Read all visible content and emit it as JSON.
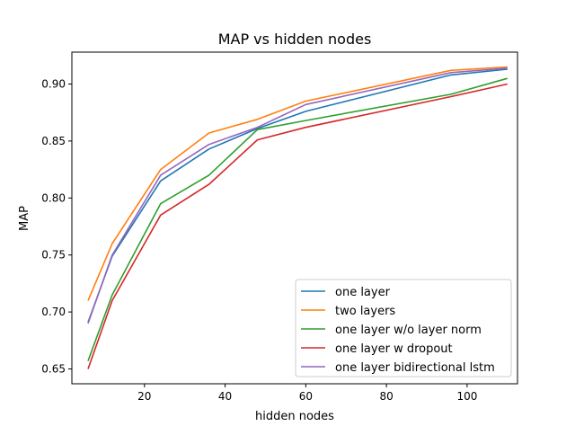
{
  "chart_data": {
    "type": "line",
    "title": "MAP vs hidden nodes",
    "xlabel": "hidden nodes",
    "ylabel": "MAP",
    "xlim": [
      2,
      112.5
    ],
    "ylim": [
      0.637,
      0.928
    ],
    "xticks": [
      20,
      40,
      60,
      80,
      100
    ],
    "yticks": [
      0.65,
      0.7,
      0.75,
      0.8,
      0.85,
      0.9
    ],
    "xtick_labels": [
      "20",
      "40",
      "60",
      "80",
      "100"
    ],
    "ytick_labels": [
      "0.65",
      "0.70",
      "0.75",
      "0.80",
      "0.85",
      "0.90"
    ],
    "x": [
      6,
      12,
      24,
      36,
      48,
      60,
      96,
      110
    ],
    "series": [
      {
        "name": "one layer",
        "color": "#1f77b4",
        "values": [
          0.691,
          0.749,
          0.815,
          0.843,
          0.861,
          0.876,
          0.908,
          0.913
        ]
      },
      {
        "name": "two layers",
        "color": "#ff7f0e",
        "values": [
          0.71,
          0.76,
          0.825,
          0.857,
          0.869,
          0.885,
          0.912,
          0.915
        ]
      },
      {
        "name": "one layer w/o layer norm",
        "color": "#2ca02c",
        "values": [
          0.657,
          0.715,
          0.795,
          0.82,
          0.86,
          0.868,
          0.891,
          0.905
        ]
      },
      {
        "name": "one layer w dropout",
        "color": "#d62728",
        "values": [
          0.65,
          0.71,
          0.785,
          0.812,
          0.851,
          0.862,
          0.889,
          0.9
        ]
      },
      {
        "name": "one layer bidirectional lstm",
        "color": "#9467bd",
        "values": [
          0.69,
          0.75,
          0.82,
          0.847,
          0.862,
          0.882,
          0.91,
          0.914
        ]
      }
    ],
    "grid": false,
    "legend_position": "lower-right"
  }
}
